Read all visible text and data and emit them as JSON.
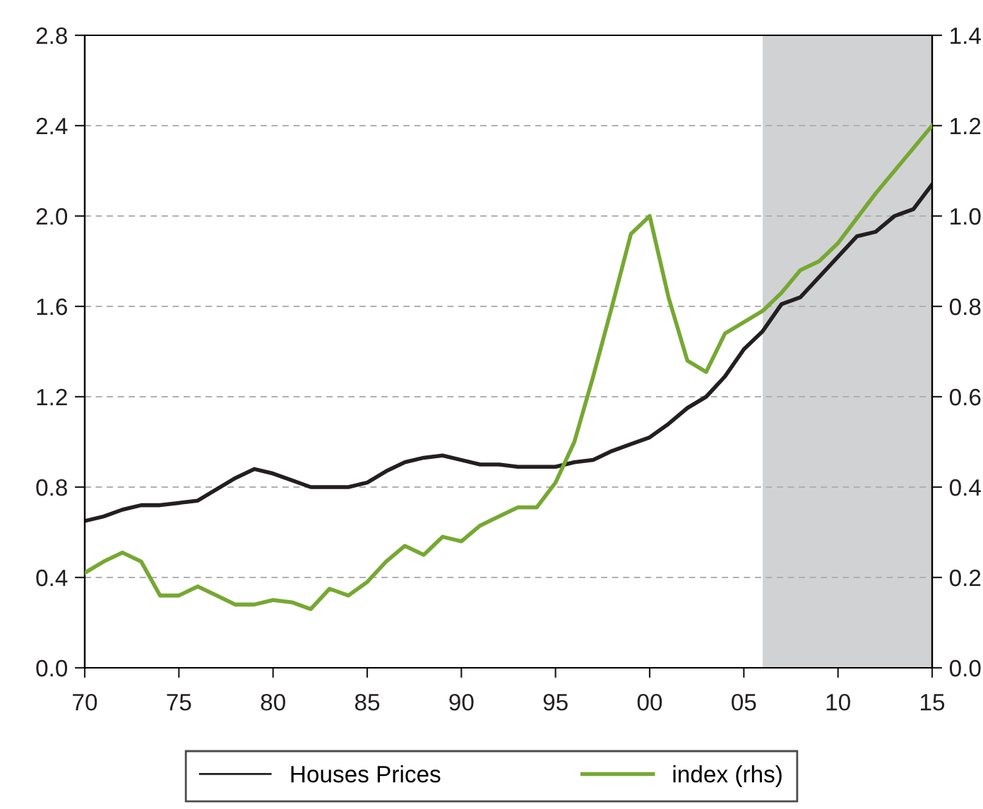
{
  "chart_data": {
    "type": "line",
    "x": [
      1970,
      1971,
      1972,
      1973,
      1974,
      1975,
      1976,
      1977,
      1978,
      1979,
      1980,
      1981,
      1982,
      1983,
      1984,
      1985,
      1986,
      1987,
      1988,
      1989,
      1990,
      1991,
      1992,
      1993,
      1994,
      1995,
      1996,
      1997,
      1998,
      1999,
      2000,
      2001,
      2002,
      2003,
      2004,
      2005,
      2006,
      2007,
      2008,
      2009,
      2010,
      2011,
      2012,
      2013,
      2014,
      2015
    ],
    "series": [
      {
        "name": "Houses Prices",
        "color": "#231f20",
        "values": [
          0.65,
          0.67,
          0.7,
          0.72,
          0.72,
          0.73,
          0.74,
          0.79,
          0.84,
          0.88,
          0.86,
          0.83,
          0.8,
          0.8,
          0.8,
          0.82,
          0.87,
          0.91,
          0.93,
          0.94,
          0.92,
          0.9,
          0.9,
          0.89,
          0.89,
          0.89,
          0.91,
          0.92,
          0.96,
          0.99,
          1.02,
          1.08,
          1.15,
          1.2,
          1.29,
          1.41,
          1.49,
          1.61,
          1.64,
          1.73,
          1.82,
          1.91,
          1.93,
          2.0,
          2.03,
          2.14
        ]
      },
      {
        "name": "index (rhs)",
        "color": "#76a832",
        "axis": "y2",
        "values": [
          0.21,
          0.235,
          0.255,
          0.235,
          0.16,
          0.16,
          0.18,
          0.16,
          0.14,
          0.14,
          0.15,
          0.145,
          0.13,
          0.175,
          0.16,
          0.19,
          0.235,
          0.27,
          0.25,
          0.29,
          0.28,
          0.315,
          0.335,
          0.355,
          0.355,
          0.41,
          0.5,
          0.645,
          0.8,
          0.96,
          1.0,
          0.82,
          0.68,
          0.655,
          0.74,
          0.765,
          0.79,
          0.83,
          0.88,
          0.9,
          0.94,
          0.995,
          1.05,
          1.1,
          1.15,
          1.2
        ]
      }
    ],
    "xlim": [
      1970,
      2015
    ],
    "xticks": [
      {
        "value": 1970,
        "label": "70"
      },
      {
        "value": 1975,
        "label": "75"
      },
      {
        "value": 1980,
        "label": "80"
      },
      {
        "value": 1985,
        "label": "85"
      },
      {
        "value": 1990,
        "label": "90"
      },
      {
        "value": 1995,
        "label": "95"
      },
      {
        "value": 2000,
        "label": "00"
      },
      {
        "value": 2005,
        "label": "05"
      },
      {
        "value": 2010,
        "label": "10"
      },
      {
        "value": 2015,
        "label": "15"
      }
    ],
    "ylim": [
      0,
      2.8
    ],
    "yticks": [
      {
        "value": 0,
        "label": "0.0"
      },
      {
        "value": 0.4,
        "label": "0.4"
      },
      {
        "value": 0.8,
        "label": "0.8"
      },
      {
        "value": 1.2,
        "label": "1.2"
      },
      {
        "value": 1.6,
        "label": "1.6"
      },
      {
        "value": 2.0,
        "label": "2.0"
      },
      {
        "value": 2.4,
        "label": "2.4"
      },
      {
        "value": 2.8,
        "label": "2.8"
      }
    ],
    "y2lim": [
      0,
      1.4
    ],
    "y2ticks": [
      {
        "value": 0,
        "label": "0.0"
      },
      {
        "value": 0.2,
        "label": "0.2"
      },
      {
        "value": 0.4,
        "label": "0.4"
      },
      {
        "value": 0.6,
        "label": "0.6"
      },
      {
        "value": 0.8,
        "label": "0.8"
      },
      {
        "value": 1.0,
        "label": "1.0"
      },
      {
        "value": 1.2,
        "label": "1.2"
      },
      {
        "value": 1.4,
        "label": "1.4"
      }
    ],
    "bands": [
      {
        "axis": "x",
        "from": 2006,
        "to": 2015,
        "color": "#d1d2d4"
      }
    ],
    "grid": "y",
    "legend": "bottom",
    "line_style": "solid",
    "marker": "none"
  }
}
